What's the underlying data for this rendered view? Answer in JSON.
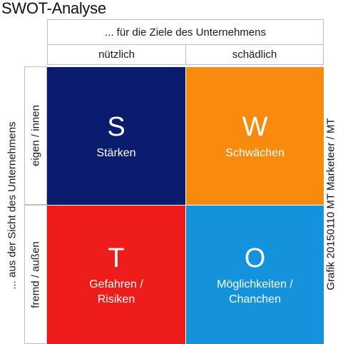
{
  "title": "SWOT-Analyse",
  "header": {
    "goal_label": "... für die Ziele des Unternehmens",
    "useful": "nützlich",
    "harmful": "schädlich"
  },
  "side": {
    "perspective_label": "... aus der Sicht des Unternehmens",
    "internal": "eigen / innen",
    "external": "fremd / außen"
  },
  "quadrants": {
    "s": {
      "letter": "S",
      "label": "Stärken",
      "color": "#0b1b6e"
    },
    "w": {
      "letter": "W",
      "label": "Schwächen",
      "color": "#f78a0f"
    },
    "t": {
      "letter": "T",
      "label_line1": "Gefahren /",
      "label_line2": "Risiken",
      "color": "#ef1c1c"
    },
    "o": {
      "letter": "O",
      "label_line1": "Möglichkeiten /",
      "label_line2": "Chanchen",
      "color": "#1592dc"
    }
  },
  "credit": "Grafik 20150110 MT Marketeer / MT"
}
